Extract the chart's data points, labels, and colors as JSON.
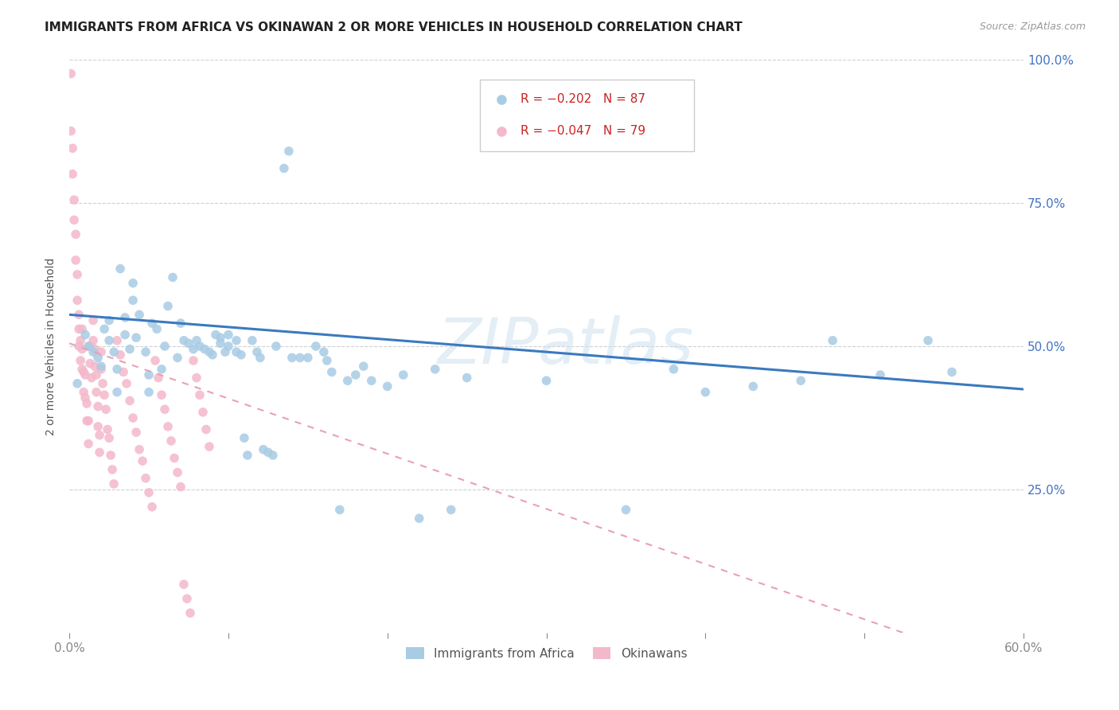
{
  "title": "IMMIGRANTS FROM AFRICA VS OKINAWAN 2 OR MORE VEHICLES IN HOUSEHOLD CORRELATION CHART",
  "source": "Source: ZipAtlas.com",
  "ylabel": "2 or more Vehicles in Household",
  "x_min": 0.0,
  "x_max": 0.6,
  "y_min": 0.0,
  "y_max": 1.0,
  "blue_color": "#a8cce4",
  "pink_color": "#f4b8cb",
  "blue_line_color": "#3a7abf",
  "pink_line_color": "#e8a0b8",
  "legend_R_blue": "R = −0.202",
  "legend_N_blue": "N = 87",
  "legend_R_pink": "R = −0.047",
  "legend_N_pink": "N = 79",
  "watermark": "ZIPatlas",
  "blue_trend_x": [
    0.0,
    0.6
  ],
  "blue_trend_y": [
    0.555,
    0.425
  ],
  "pink_trend_x": [
    0.0,
    0.525
  ],
  "pink_trend_y": [
    0.505,
    0.0
  ],
  "blue_scatter_x": [
    0.005,
    0.01,
    0.012,
    0.015,
    0.018,
    0.02,
    0.022,
    0.025,
    0.025,
    0.028,
    0.03,
    0.03,
    0.032,
    0.035,
    0.035,
    0.038,
    0.04,
    0.04,
    0.042,
    0.044,
    0.048,
    0.05,
    0.05,
    0.052,
    0.055,
    0.058,
    0.06,
    0.062,
    0.065,
    0.068,
    0.07,
    0.072,
    0.075,
    0.078,
    0.08,
    0.082,
    0.085,
    0.088,
    0.09,
    0.092,
    0.095,
    0.095,
    0.098,
    0.1,
    0.1,
    0.105,
    0.105,
    0.108,
    0.11,
    0.112,
    0.115,
    0.118,
    0.12,
    0.122,
    0.125,
    0.128,
    0.13,
    0.135,
    0.138,
    0.14,
    0.145,
    0.15,
    0.155,
    0.16,
    0.162,
    0.165,
    0.17,
    0.175,
    0.18,
    0.185,
    0.19,
    0.2,
    0.21,
    0.22,
    0.23,
    0.24,
    0.25,
    0.3,
    0.35,
    0.38,
    0.4,
    0.43,
    0.46,
    0.48,
    0.51,
    0.54,
    0.555
  ],
  "blue_scatter_y": [
    0.435,
    0.52,
    0.5,
    0.49,
    0.48,
    0.465,
    0.53,
    0.51,
    0.545,
    0.49,
    0.46,
    0.42,
    0.635,
    0.55,
    0.52,
    0.495,
    0.61,
    0.58,
    0.515,
    0.555,
    0.49,
    0.45,
    0.42,
    0.54,
    0.53,
    0.46,
    0.5,
    0.57,
    0.62,
    0.48,
    0.54,
    0.51,
    0.505,
    0.495,
    0.51,
    0.5,
    0.495,
    0.49,
    0.485,
    0.52,
    0.515,
    0.505,
    0.49,
    0.52,
    0.5,
    0.51,
    0.49,
    0.485,
    0.34,
    0.31,
    0.51,
    0.49,
    0.48,
    0.32,
    0.315,
    0.31,
    0.5,
    0.81,
    0.84,
    0.48,
    0.48,
    0.48,
    0.5,
    0.49,
    0.475,
    0.455,
    0.215,
    0.44,
    0.45,
    0.465,
    0.44,
    0.43,
    0.45,
    0.2,
    0.46,
    0.215,
    0.445,
    0.44,
    0.215,
    0.46,
    0.42,
    0.43,
    0.44,
    0.51,
    0.45,
    0.51,
    0.455
  ],
  "pink_scatter_x": [
    0.001,
    0.001,
    0.002,
    0.002,
    0.003,
    0.003,
    0.004,
    0.004,
    0.005,
    0.005,
    0.006,
    0.006,
    0.006,
    0.007,
    0.007,
    0.008,
    0.008,
    0.008,
    0.009,
    0.009,
    0.01,
    0.01,
    0.011,
    0.011,
    0.012,
    0.012,
    0.013,
    0.013,
    0.014,
    0.015,
    0.015,
    0.016,
    0.016,
    0.017,
    0.017,
    0.018,
    0.018,
    0.019,
    0.019,
    0.02,
    0.02,
    0.021,
    0.022,
    0.023,
    0.024,
    0.025,
    0.026,
    0.027,
    0.028,
    0.03,
    0.032,
    0.034,
    0.036,
    0.038,
    0.04,
    0.042,
    0.044,
    0.046,
    0.048,
    0.05,
    0.052,
    0.054,
    0.056,
    0.058,
    0.06,
    0.062,
    0.064,
    0.066,
    0.068,
    0.07,
    0.072,
    0.074,
    0.076,
    0.078,
    0.08,
    0.082,
    0.084,
    0.086,
    0.088
  ],
  "pink_scatter_y": [
    0.975,
    0.875,
    0.845,
    0.8,
    0.755,
    0.72,
    0.695,
    0.65,
    0.625,
    0.58,
    0.555,
    0.53,
    0.5,
    0.51,
    0.475,
    0.53,
    0.495,
    0.46,
    0.455,
    0.42,
    0.45,
    0.41,
    0.4,
    0.37,
    0.37,
    0.33,
    0.5,
    0.47,
    0.445,
    0.545,
    0.51,
    0.495,
    0.465,
    0.45,
    0.42,
    0.395,
    0.36,
    0.345,
    0.315,
    0.49,
    0.46,
    0.435,
    0.415,
    0.39,
    0.355,
    0.34,
    0.31,
    0.285,
    0.26,
    0.51,
    0.485,
    0.455,
    0.435,
    0.405,
    0.375,
    0.35,
    0.32,
    0.3,
    0.27,
    0.245,
    0.22,
    0.475,
    0.445,
    0.415,
    0.39,
    0.36,
    0.335,
    0.305,
    0.28,
    0.255,
    0.085,
    0.06,
    0.035,
    0.475,
    0.445,
    0.415,
    0.385,
    0.355,
    0.325
  ]
}
